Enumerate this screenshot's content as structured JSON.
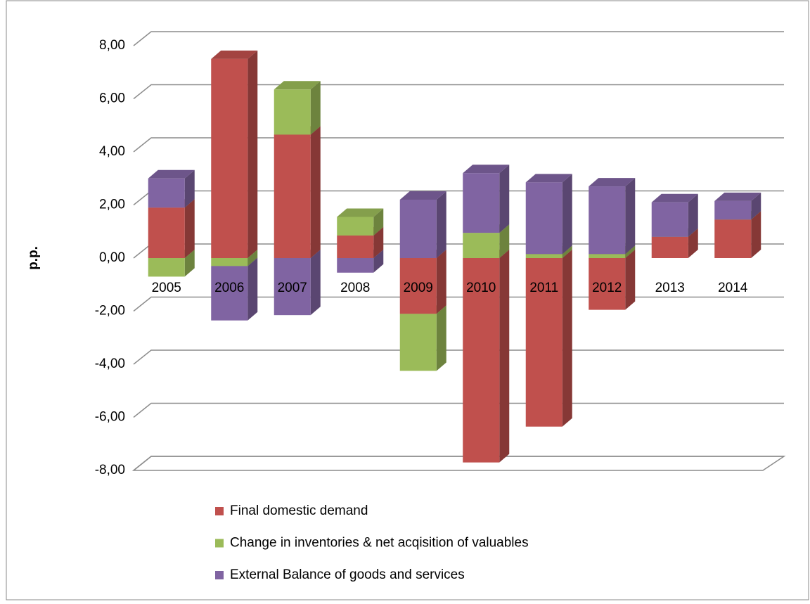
{
  "chart_data": {
    "type": "bar3d_stacked",
    "y_label": "p.p.",
    "categories": [
      "2005",
      "2006",
      "2007",
      "2008",
      "2009",
      "2010",
      "2011",
      "2012",
      "2013",
      "2014"
    ],
    "series": [
      {
        "name": "Final domestic demand",
        "color": "#c0504d",
        "values": [
          1.9,
          7.5,
          4.65,
          0.85,
          -2.1,
          -7.7,
          -6.35,
          -1.95,
          0.8,
          1.45
        ]
      },
      {
        "name": "Change in inventories & net acqisition of valuables",
        "color": "#9bbb59",
        "values": [
          -0.7,
          -0.3,
          1.7,
          0.7,
          -2.15,
          0.95,
          0.15,
          0.15,
          0,
          0
        ]
      },
      {
        "name": "External Balance of goods and services",
        "color": "#8064a2",
        "values": [
          1.1,
          -2.05,
          -2.15,
          -0.55,
          2.2,
          2.25,
          2.7,
          2.55,
          1.3,
          0.7
        ]
      }
    ],
    "ylim": [
      -8,
      8
    ],
    "yticks": [
      {
        "value": -8,
        "label": "-8,00"
      },
      {
        "value": -6,
        "label": "-6,00"
      },
      {
        "value": -4,
        "label": "-4,00"
      },
      {
        "value": -2,
        "label": "-2,00"
      },
      {
        "value": 0,
        "label": "0,00"
      },
      {
        "value": 2,
        "label": "2,00"
      },
      {
        "value": 4,
        "label": "4,00"
      },
      {
        "value": 6,
        "label": "6,00"
      },
      {
        "value": 8,
        "label": "8,00"
      }
    ],
    "grid": true
  }
}
